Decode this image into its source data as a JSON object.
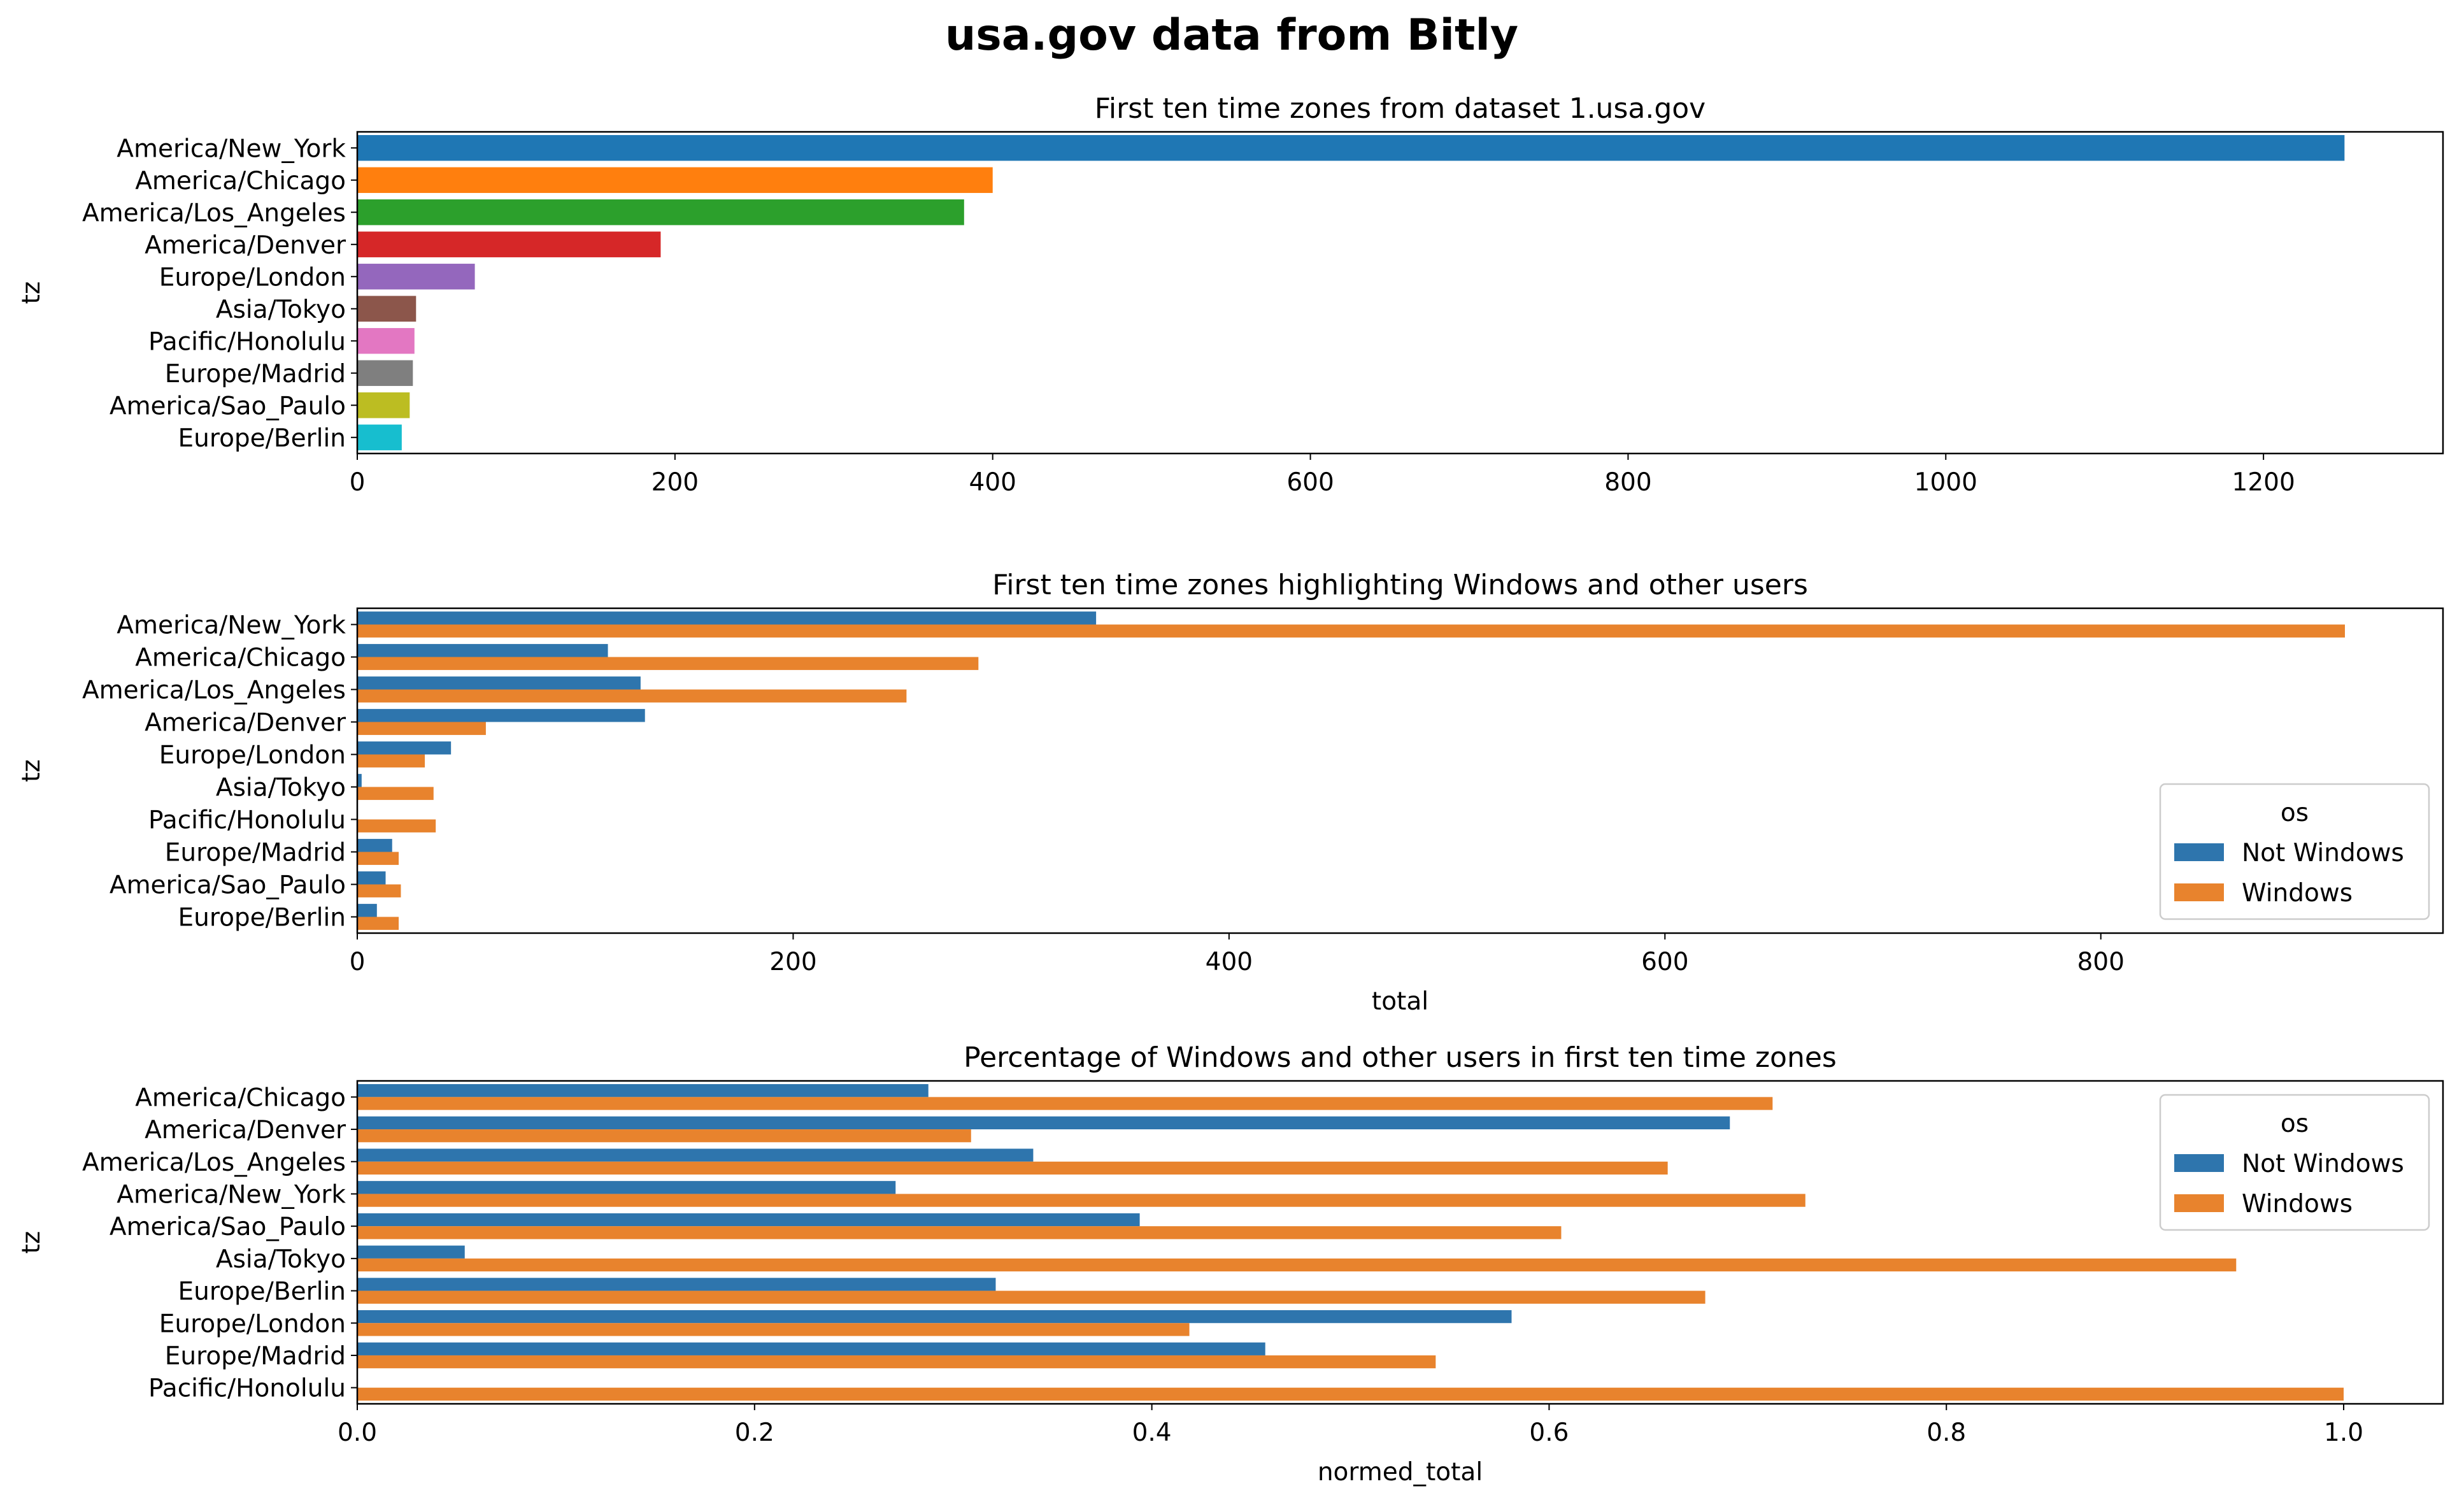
{
  "figure": {
    "suptitle": "usa.gov data from Bitly"
  },
  "palette": {
    "tab10": [
      "#1f77b4",
      "#ff7f0e",
      "#2ca02c",
      "#d62728",
      "#9467bd",
      "#8c564b",
      "#e377c2",
      "#7f7f7f",
      "#bcbd22",
      "#17becf"
    ],
    "not_windows": "#2e75ad",
    "windows": "#e8832d"
  },
  "chart_data": [
    {
      "type": "bar",
      "orientation": "horizontal",
      "title": "First ten time zones from dataset 1.usa.gov",
      "xlabel": "",
      "ylabel": "tz",
      "categories": [
        "America/New_York",
        "America/Chicago",
        "America/Los_Angeles",
        "America/Denver",
        "Europe/London",
        "Asia/Tokyo",
        "Pacific/Honolulu",
        "Europe/Madrid",
        "America/Sao_Paulo",
        "Europe/Berlin"
      ],
      "values": [
        1251,
        400,
        382,
        191,
        74,
        37,
        36,
        35,
        33,
        28
      ],
      "xlim": [
        0,
        1313
      ],
      "xticks": [
        0,
        200,
        400,
        600,
        800,
        1000,
        1200
      ],
      "xtick_labels": [
        "0",
        "200",
        "400",
        "600",
        "800",
        "1000",
        "1200"
      ],
      "grid": false,
      "legend": null
    },
    {
      "type": "bar",
      "orientation": "horizontal",
      "title": "First ten time zones highlighting Windows and other users",
      "xlabel": "total",
      "ylabel": "tz",
      "categories": [
        "America/New_York",
        "America/Chicago",
        "America/Los_Angeles",
        "America/Denver",
        "Europe/London",
        "Asia/Tokyo",
        "Pacific/Honolulu",
        "Europe/Madrid",
        "America/Sao_Paulo",
        "Europe/Berlin"
      ],
      "series": [
        {
          "name": "Not Windows",
          "values": [
            339,
            115,
            130,
            132,
            43,
            2,
            0,
            16,
            13,
            9
          ]
        },
        {
          "name": "Windows",
          "values": [
            912,
            285,
            252,
            59,
            31,
            35,
            36,
            19,
            20,
            19
          ]
        }
      ],
      "xlim": [
        0,
        957
      ],
      "xticks": [
        0,
        200,
        400,
        600,
        800
      ],
      "xtick_labels": [
        "0",
        "200",
        "400",
        "600",
        "800"
      ],
      "grid": false,
      "legend": {
        "title": "os",
        "placement": "lower right"
      }
    },
    {
      "type": "bar",
      "orientation": "horizontal",
      "title": "Percentage of Windows and other users in first ten time zones",
      "xlabel": "normed_total",
      "ylabel": "tz",
      "categories": [
        "America/Chicago",
        "America/Denver",
        "America/Los_Angeles",
        "America/New_York",
        "America/Sao_Paulo",
        "Asia/Tokyo",
        "Europe/Berlin",
        "Europe/London",
        "Europe/Madrid",
        "Pacific/Honolulu"
      ],
      "series": [
        {
          "name": "Not Windows",
          "values": [
            0.2875,
            0.691,
            0.3403,
            0.271,
            0.3939,
            0.0541,
            0.3214,
            0.5811,
            0.4571,
            0.0
          ]
        },
        {
          "name": "Windows",
          "values": [
            0.7125,
            0.309,
            0.6597,
            0.729,
            0.6061,
            0.9459,
            0.6786,
            0.4189,
            0.5429,
            1.0
          ]
        }
      ],
      "xlim": [
        0,
        1.05
      ],
      "xticks": [
        0,
        0.2,
        0.4,
        0.6,
        0.8,
        1.0
      ],
      "xtick_labels": [
        "0.0",
        "0.2",
        "0.4",
        "0.6",
        "0.8",
        "1.0"
      ],
      "grid": false,
      "legend": {
        "title": "os",
        "placement": "upper right"
      }
    }
  ]
}
